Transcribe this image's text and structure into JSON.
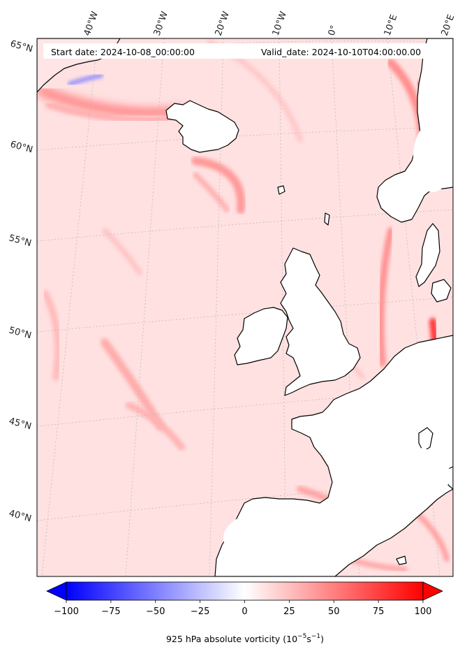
{
  "header": {
    "start_label": "Start date: 2024-10-08_00:00:00",
    "valid_label": "Valid_date: 2024-10-10T04:00:00.00"
  },
  "longitude_labels": [
    "40°W",
    "30°W",
    "20°W",
    "10°W",
    "0°",
    "10°E",
    "20°E"
  ],
  "latitude_labels": [
    "65°N",
    "60°N",
    "55°N",
    "50°N",
    "45°N",
    "40°N"
  ],
  "colorbar": {
    "ticks": [
      "−100",
      "−75",
      "−50",
      "−25",
      "0",
      "25",
      "50",
      "75",
      "100"
    ],
    "vmin": -100,
    "vmax": 100,
    "label_main": "925 hPa absolute vorticity (10",
    "label_exp1": "−5",
    "label_mid": "s",
    "label_exp2": "−1",
    "label_end": ")",
    "cmap": "bwr",
    "colors": {
      "neg": "#0000ff",
      "zero": "#ffffff",
      "pos": "#ff0000"
    }
  },
  "map": {
    "land_color": "#ffffff",
    "sea_tint": "#ffe3e3",
    "coastline_color": "#000000",
    "grid_color": "#aaaaaa"
  }
}
